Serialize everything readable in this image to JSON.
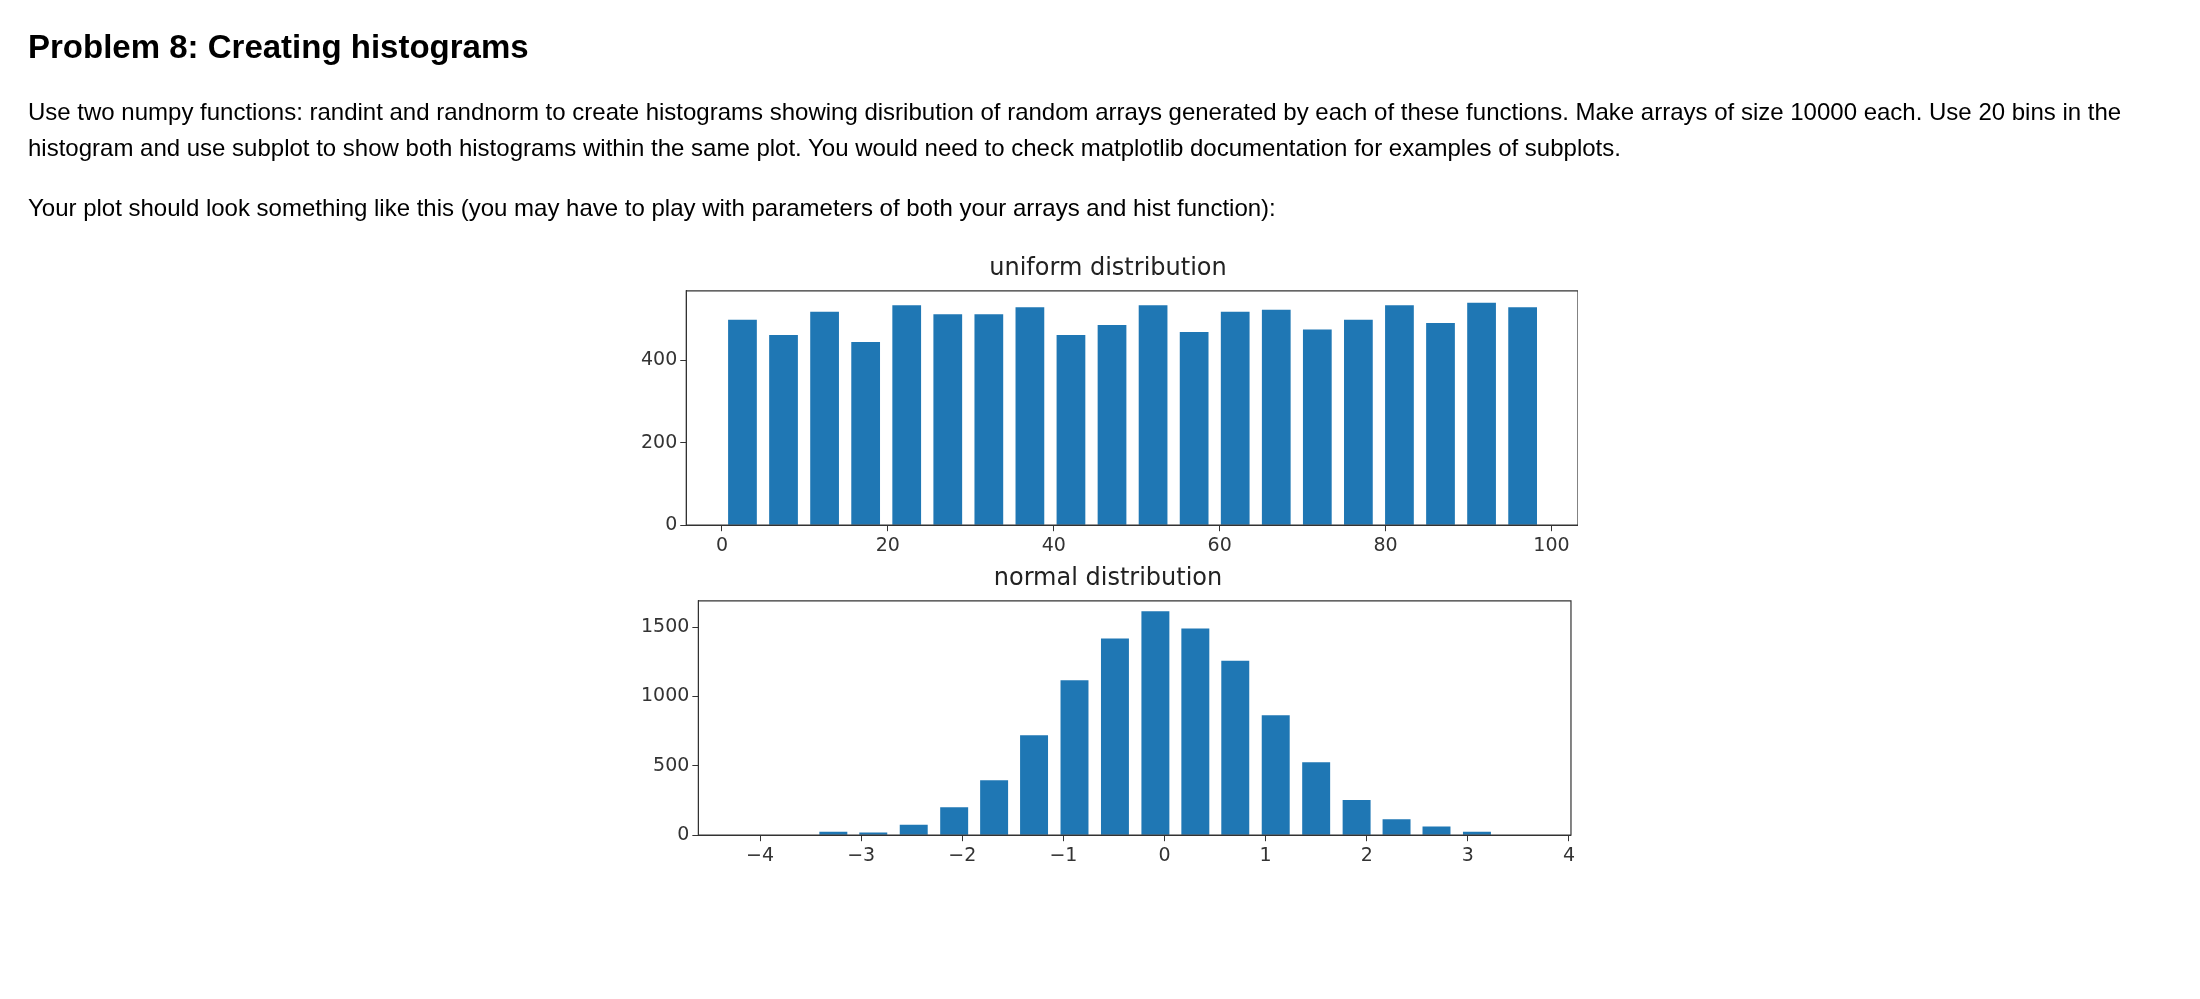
{
  "chart_data": [
    {
      "type": "other",
      "title": "Problem 8: Creating histograms",
      "annotations": [
        "Use two numpy functions: randint and randnorm to create histograms showing disribution of random arrays generated by each of these functions. Make arrays of size 10000 each. Use 20 bins in the histogram and use subplot to show both histograms within the same plot. You would need to check matplotlib documentation for examples of subplots.",
        "Your plot should look something like this (you may have to play with parameters of both your arrays and hist function):"
      ]
    },
    {
      "type": "histogram",
      "title": "uniform distribution",
      "color": "#1f77b4",
      "bins": [
        0,
        4.95,
        9.9,
        14.85,
        19.8,
        24.75,
        29.7,
        34.65,
        39.6,
        44.55,
        49.5,
        54.45,
        59.4,
        64.35,
        69.3,
        74.25,
        79.2,
        84.15,
        89.1,
        94.05,
        99
      ],
      "values": [
        499,
        462,
        518,
        445,
        534,
        512,
        512,
        529,
        462,
        486,
        534,
        469,
        518,
        523,
        475,
        499,
        534,
        491,
        540,
        529
      ],
      "xlim": [
        -4.3,
        103.2
      ],
      "xticks": [
        0,
        20,
        40,
        60,
        80,
        100
      ],
      "ylim": [
        0,
        569
      ],
      "yticks": [
        0,
        200,
        400
      ],
      "grid": false
    },
    {
      "type": "histogram",
      "title": "normal distribution",
      "color": "#1f77b4",
      "bins": [
        -3.47,
        -3.08,
        -2.68,
        -2.28,
        -1.88,
        -1.49,
        -1.09,
        -0.69,
        -0.29,
        0.11,
        0.5,
        0.9,
        1.3,
        1.7,
        2.1,
        2.49,
        2.89,
        3.29,
        3.69
      ],
      "values": [
        24,
        19,
        76,
        201,
        397,
        721,
        1118,
        1419,
        1615,
        1491,
        1257,
        865,
        526,
        253,
        115,
        62,
        24,
        4
      ],
      "xlim": [
        -4.61,
        4.02
      ],
      "xticks": [
        {
          "value": -4,
          "label": "−4"
        },
        {
          "value": -3,
          "label": "−3"
        },
        {
          "value": -2,
          "label": "−2"
        },
        {
          "value": -1,
          "label": "−1"
        },
        0,
        1,
        2,
        3,
        4
      ],
      "ylim": [
        0,
        1690
      ],
      "yticks": [
        0,
        500,
        1000,
        1500
      ],
      "grid": false
    }
  ]
}
